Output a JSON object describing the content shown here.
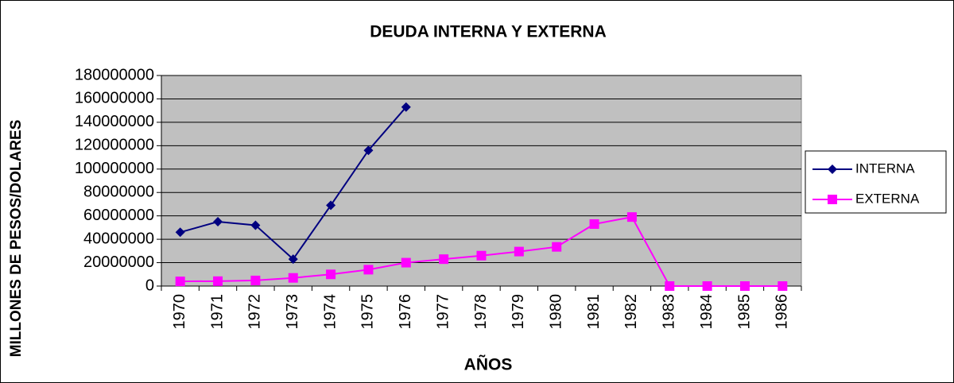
{
  "chart_data": {
    "type": "line",
    "title": "DEUDA INTERNA Y EXTERNA",
    "x_label": "AÑOS",
    "y_label": "MILLONES DE PESOS/DOLARES",
    "categories": [
      "1970",
      "1971",
      "1972",
      "1973",
      "1974",
      "1975",
      "1976",
      "1977",
      "1978",
      "1979",
      "1980",
      "1981",
      "1982",
      "1983",
      "1984",
      "1985",
      "1986"
    ],
    "series": [
      {
        "name": "INTERNA",
        "color": "#000080",
        "marker": "diamond",
        "values": [
          46000000,
          55000000,
          52000000,
          23000000,
          69000000,
          116000000,
          153000000,
          null,
          null,
          null,
          null,
          null,
          null,
          null,
          null,
          null,
          null
        ]
      },
      {
        "name": "EXTERNA",
        "color": "#ff00ff",
        "marker": "square",
        "values": [
          4000000,
          4200000,
          4800000,
          7000000,
          10000000,
          14000000,
          20000000,
          23000000,
          26000000,
          29500000,
          33500000,
          53000000,
          59000000,
          0,
          0,
          0,
          0
        ]
      }
    ],
    "ylim": [
      0,
      180000000
    ],
    "yticks": [
      0,
      20000000,
      40000000,
      60000000,
      80000000,
      100000000,
      120000000,
      140000000,
      160000000,
      180000000
    ],
    "grid": true,
    "legend": "right",
    "plot_background": "#c0c0c0"
  }
}
